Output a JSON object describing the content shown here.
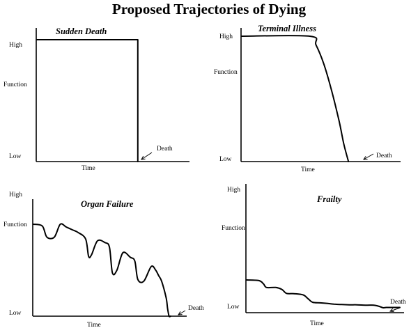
{
  "title": "Proposed Trajectories of Dying",
  "chart_data": [
    {
      "type": "line",
      "title": "Sudden Death",
      "xlabel": "Time",
      "ylabel": "Function",
      "yticks": [
        "High",
        "Low"
      ],
      "annotation": "Death",
      "xlim": [
        0,
        100
      ],
      "ylim": [
        0,
        100
      ],
      "series": [
        {
          "x": [
            0,
            68,
            68
          ],
          "y": [
            100,
            100,
            0
          ]
        }
      ]
    },
    {
      "type": "line",
      "title": "Terminal Illness",
      "xlabel": "Time",
      "ylabel": "Function",
      "yticks": [
        "High",
        "Low"
      ],
      "annotation": "Death",
      "xlim": [
        0,
        100
      ],
      "ylim": [
        0,
        100
      ],
      "series": [
        {
          "x": [
            0,
            44,
            48,
            53,
            58,
            63,
            66,
            69
          ],
          "y": [
            100,
            100,
            93,
            78,
            57,
            32,
            14,
            0
          ]
        }
      ]
    },
    {
      "type": "line",
      "title": "Organ Failure",
      "xlabel": "Time",
      "ylabel": "Function",
      "yticks": [
        "High",
        "Low"
      ],
      "annotation": "Death",
      "xlim": [
        0,
        100
      ],
      "ylim": [
        0,
        100
      ],
      "series": [
        {
          "x": [
            0,
            6,
            9,
            14,
            18,
            22,
            26,
            30,
            35,
            37,
            39,
            43,
            48,
            51,
            53,
            56,
            60,
            65,
            68,
            70,
            74,
            79,
            82,
            84,
            86,
            89,
            90,
            91,
            92
          ],
          "y": [
            100,
            98,
            86,
            86,
            100,
            97,
            94,
            91,
            84,
            65,
            67,
            82,
            80,
            75,
            47,
            50,
            69,
            64,
            60,
            40,
            38,
            54,
            50,
            44,
            38,
            20,
            8,
            0,
            0
          ]
        }
      ]
    },
    {
      "type": "line",
      "title": "Frailty",
      "xlabel": "Time",
      "ylabel": "Function",
      "yticks": [
        "High",
        "Low"
      ],
      "annotation": "Death",
      "xlim": [
        0,
        100
      ],
      "ylim": [
        0,
        100
      ],
      "series": [
        {
          "x": [
            0,
            8,
            11,
            13,
            19,
            23,
            26,
            31,
            37,
            40,
            43,
            48,
            53,
            57,
            62,
            67,
            72,
            78,
            83,
            86,
            89,
            91,
            94,
            97,
            100
          ],
          "y": [
            100,
            98,
            88,
            77,
            77,
            71,
            59,
            58,
            54,
            43,
            32,
            30,
            28,
            26,
            25,
            24,
            24,
            23,
            23,
            20,
            15,
            16,
            16,
            16,
            16
          ]
        }
      ]
    }
  ]
}
